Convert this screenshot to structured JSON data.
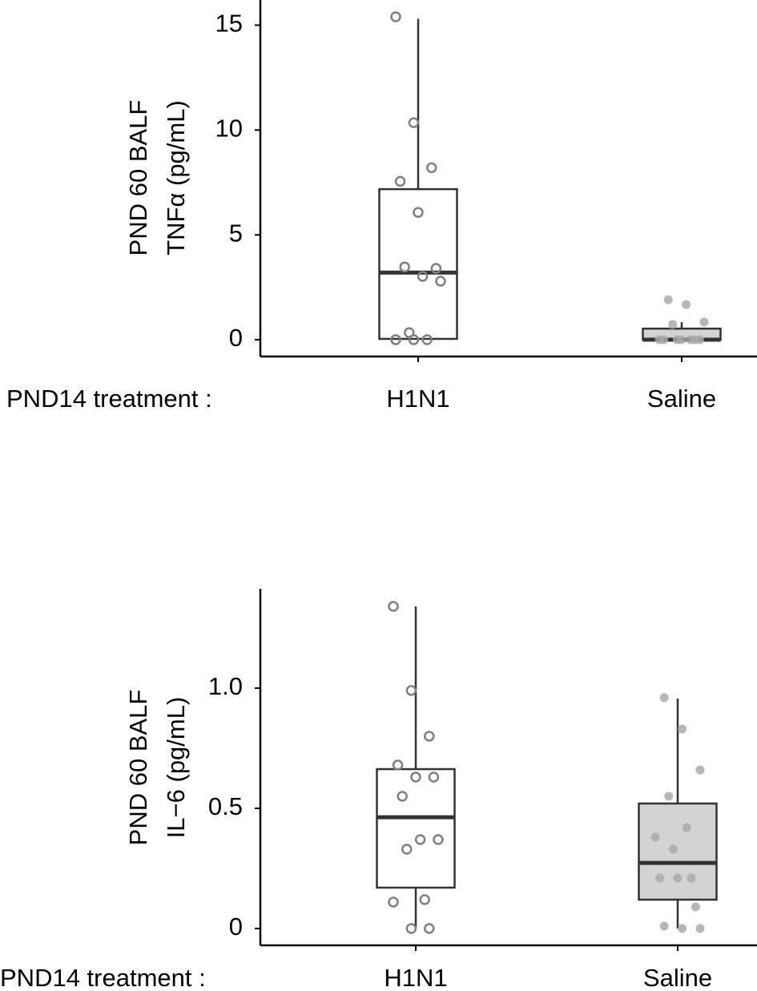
{
  "chart_data": [
    {
      "type": "box",
      "ylabel": [
        "PND 60 BALF",
        "TNFα (pg/mL)"
      ],
      "xlabel": "PND14 treatment :",
      "categories": [
        "H1N1",
        "Saline"
      ],
      "ylim": [
        -0.8,
        16.2
      ],
      "yticks": [
        0,
        5,
        10,
        15
      ],
      "boxes": [
        {
          "whisker_low": 0,
          "q1": 0.04,
          "median": 3.2,
          "q3": 7.18,
          "whisker_high": 15.3,
          "fill": "#ffffff",
          "point_color": "#808080",
          "point_style": "open",
          "points": [
            15.4,
            10.35,
            8.2,
            7.55,
            6.07,
            3.4,
            3.47,
            3.02,
            2.79,
            0.34,
            0,
            0,
            0
          ]
        },
        {
          "whisker_low": 0,
          "q1": 0,
          "median": 0,
          "q3": 0.53,
          "whisker_high": 0.84,
          "fill": "#d3d3d3",
          "point_color": "#a9a9a9",
          "point_style": "filled",
          "points": [
            1.91,
            1.68,
            0.84,
            0.73,
            0,
            0,
            0,
            0,
            0,
            0,
            0
          ]
        }
      ]
    },
    {
      "type": "box",
      "ylabel": [
        "PND 60 BALF",
        "IL−6 (pg/mL)"
      ],
      "xlabel": "PND14 treatment :",
      "categories": [
        "H1N1",
        "Saline"
      ],
      "ylim": [
        -0.07,
        1.413
      ],
      "yticks": [
        0,
        0.5,
        {
          "value": 1,
          "label": "1.0"
        }
      ],
      "boxes": [
        {
          "whisker_low": 0,
          "q1": 0.17,
          "median": 0.463,
          "q3": 0.663,
          "whisker_high": 1.34,
          "fill": "#ffffff",
          "point_color": "#808080",
          "point_style": "open",
          "points": [
            1.34,
            0.99,
            0.8,
            0.68,
            0.63,
            0.63,
            0.55,
            0.37,
            0.37,
            0.33,
            0.12,
            0.11,
            0,
            0
          ]
        },
        {
          "whisker_low": 0,
          "q1": 0.12,
          "median": 0.273,
          "q3": 0.52,
          "whisker_high": 0.957,
          "fill": "#d3d3d3",
          "point_color": "#a9a9a9",
          "point_style": "filled",
          "points": [
            0.96,
            0.83,
            0.66,
            0.55,
            0.42,
            0.38,
            0.33,
            0.21,
            0.21,
            0.21,
            0.09,
            0.01,
            0,
            0
          ]
        }
      ]
    }
  ]
}
